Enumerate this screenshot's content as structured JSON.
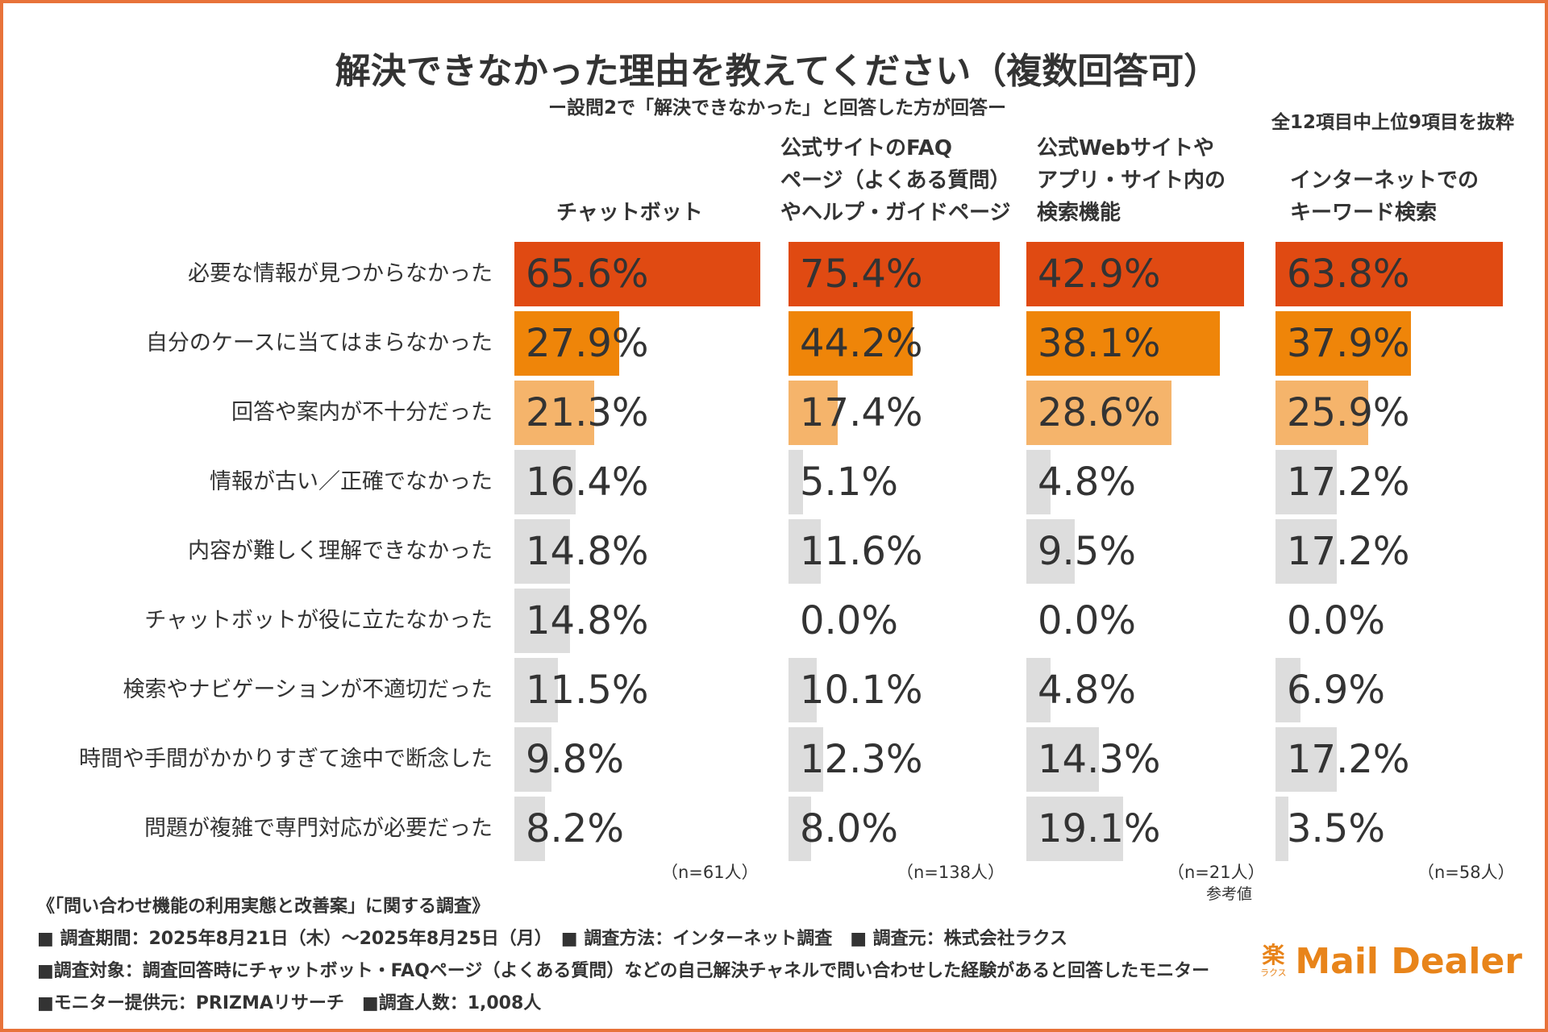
{
  "title": "解決できなかった理由を教えてください（複数回答可）",
  "subtitle": "ー設問2で「解決できなかった」と回答した方が回答ー",
  "note": "全12項目中上位9項目を抜粋",
  "columns": [
    {
      "lines": [
        "チャットボット"
      ],
      "n": "（n=61人）",
      "ref": ""
    },
    {
      "lines": [
        "公式サイトのFAQ",
        "ページ（よくある質問）",
        "やヘルプ・ガイドページ"
      ],
      "n": "（n=138人）",
      "ref": ""
    },
    {
      "lines": [
        "公式Webサイトや",
        "アプリ・サイト内の",
        "検索機能"
      ],
      "n": "（n=21人）",
      "ref": "参考値"
    },
    {
      "lines": [
        "インターネットでの",
        "キーワード検索"
      ],
      "n": "（n=58人）",
      "ref": ""
    }
  ],
  "chart_data": {
    "type": "bar",
    "orientation": "horizontal",
    "title": "解決できなかった理由を教えてください（複数回答可）",
    "categories": [
      "必要な情報が見つからなかった",
      "自分のケースに当てはまらなかった",
      "回答や案内が不十分だった",
      "情報が古い／正確でなかった",
      "内容が難しく理解できなかった",
      "チャットボットが役に立たなかった",
      "検索やナビゲーションが不適切だった",
      "時間や手間がかかりすぎて途中で断念した",
      "問題が複雑で専門対応が必要だった"
    ],
    "series": [
      {
        "name": "チャットボット",
        "values": [
          65.6,
          27.9,
          21.3,
          16.4,
          14.8,
          14.8,
          11.5,
          9.8,
          8.2
        ]
      },
      {
        "name": "公式サイトのFAQページ（よくある質問）やヘルプ・ガイドページ",
        "values": [
          75.4,
          44.2,
          17.4,
          5.1,
          11.6,
          0.0,
          10.1,
          12.3,
          8.0
        ]
      },
      {
        "name": "公式Webサイトやアプリ・サイト内の検索機能",
        "values": [
          42.9,
          38.1,
          28.6,
          4.8,
          9.5,
          0.0,
          4.8,
          14.3,
          19.1
        ]
      },
      {
        "name": "インターネットでのキーワード検索",
        "values": [
          63.8,
          37.9,
          25.9,
          17.2,
          17.2,
          0.0,
          6.9,
          17.2,
          3.5
        ]
      }
    ],
    "value_labels": [
      [
        "65.6%",
        "27.9%",
        "21.3%",
        "16.4%",
        "14.8%",
        "14.8%",
        "11.5%",
        "9.8%",
        "8.2%"
      ],
      [
        "75.4%",
        "44.2%",
        "17.4%",
        "5.1%",
        "11.6%",
        "0.0%",
        "10.1%",
        "12.3%",
        "8.0%"
      ],
      [
        "42.9%",
        "38.1%",
        "28.6%",
        "4.8%",
        "9.5%",
        "0.0%",
        "4.8%",
        "14.3%",
        "19.1%"
      ],
      [
        "63.8%",
        "37.9%",
        "25.9%",
        "17.2%",
        "17.2%",
        "0.0%",
        "6.9%",
        "17.2%",
        "3.5%"
      ]
    ],
    "row_colors": [
      "#e04a12",
      "#ef8509",
      "#f5b46b",
      "#dddddd",
      "#dddddd",
      "#dddddd",
      "#dddddd",
      "#dddddd",
      "#dddddd"
    ],
    "units": "%"
  },
  "footer": {
    "title": "《「問い合わせ機能の利用実態と改善案」に関する調査》",
    "line1": "■ 調査期間：2025年8月21日（木）〜2025年8月25日（月）　■ 調査方法：インターネット調査　■ 調査元：株式会社ラクス",
    "line2": "■調査対象：調査回答時にチャットボット・FAQページ（よくある質問）などの自己解決チャネルで問い合わせした経験があると回答したモニター",
    "line3": "■モニター提供元：PRIZMAリサーチ　■調査人数：1,008人"
  },
  "logo": {
    "mark": "楽",
    "mark_sub": "ラクス",
    "text": "Mail Dealer"
  }
}
